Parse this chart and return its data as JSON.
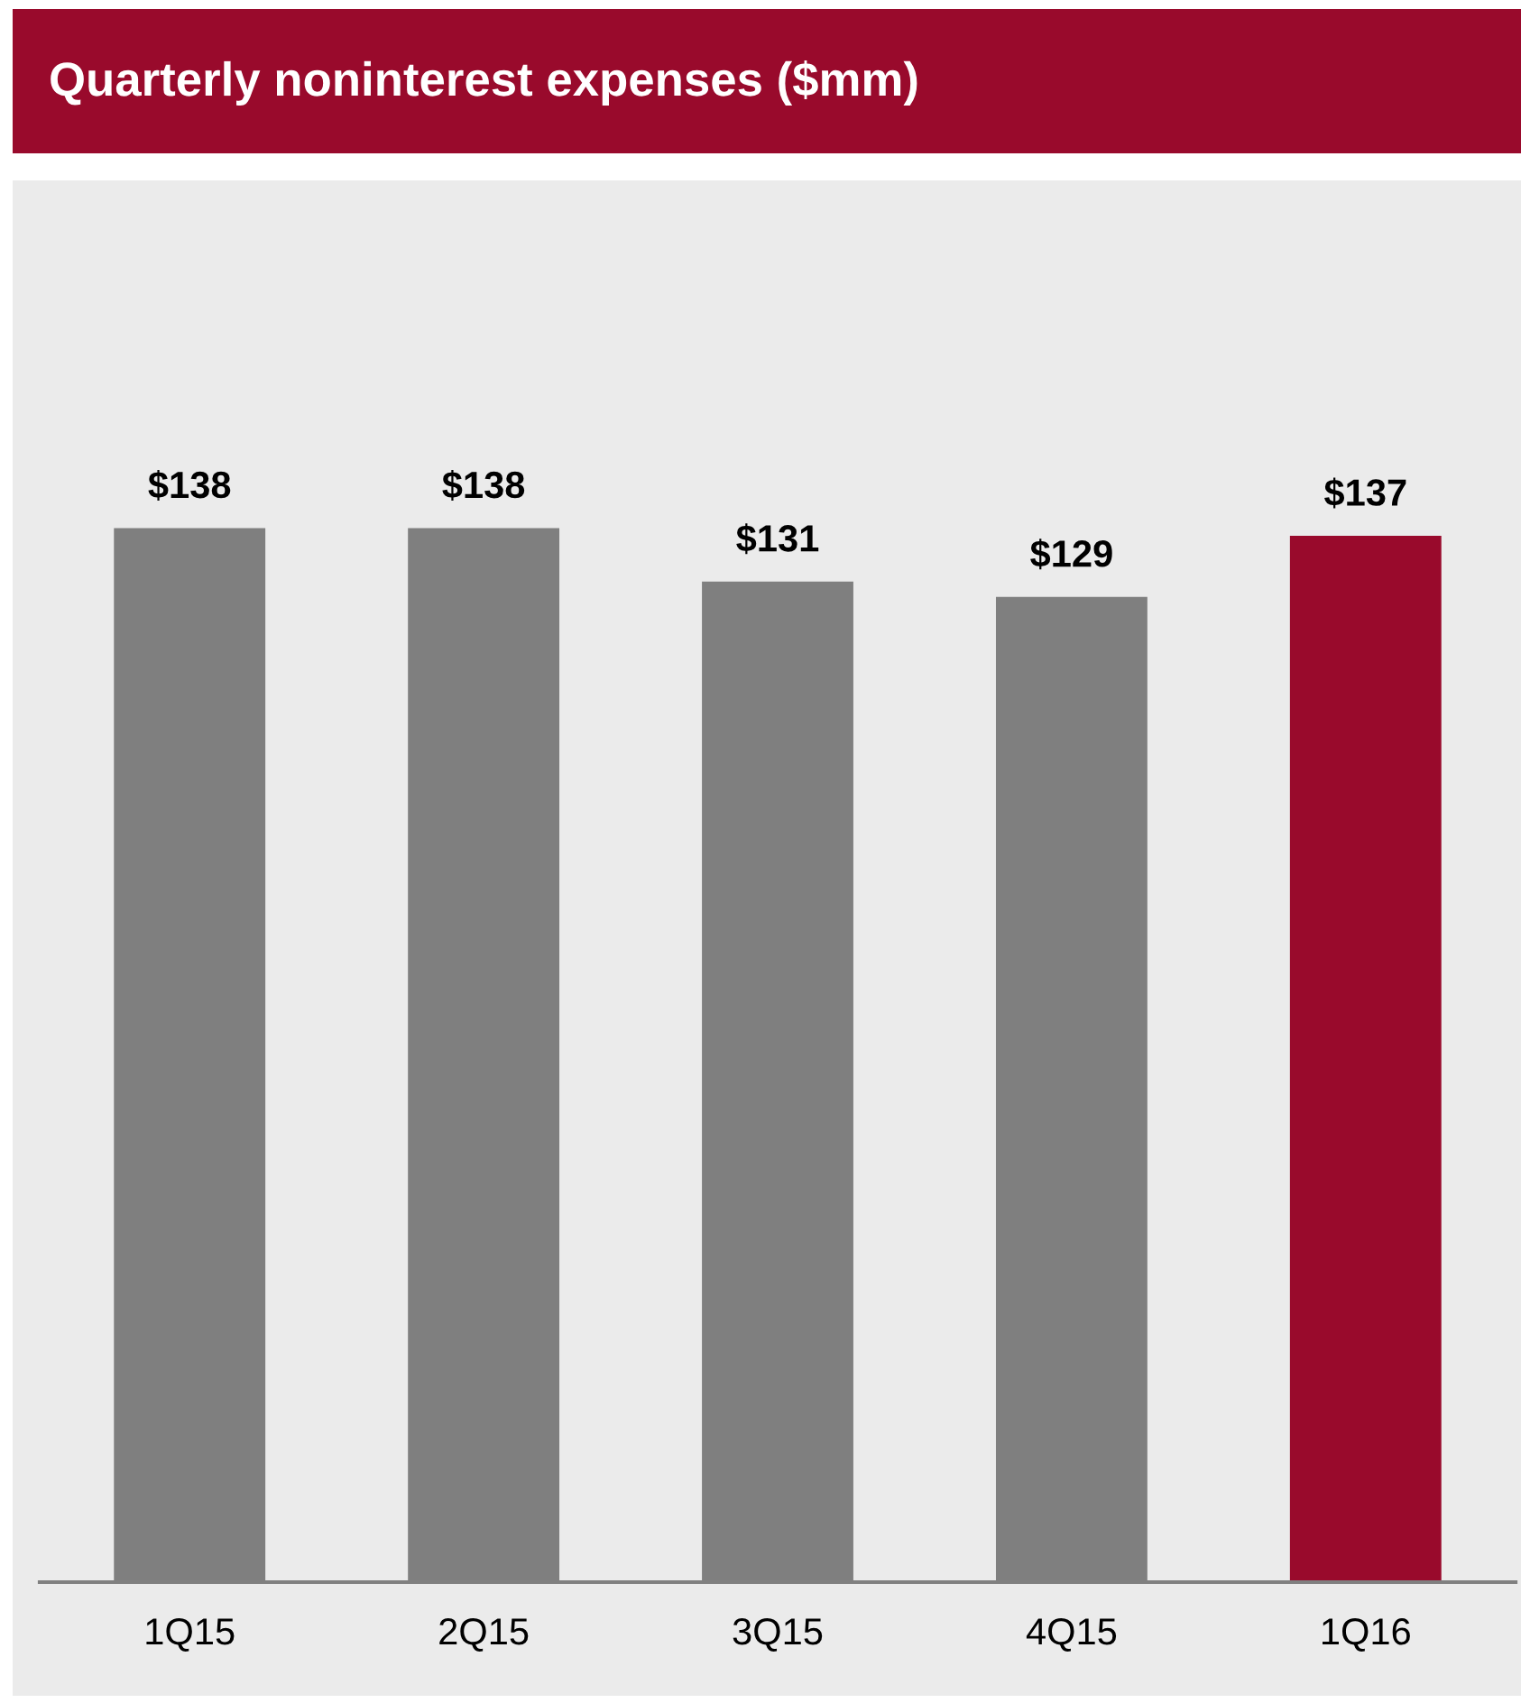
{
  "chart_data": {
    "type": "bar",
    "title": "Quarterly noninterest expenses ($mm)",
    "categories": [
      "1Q15",
      "2Q15",
      "3Q15",
      "4Q15",
      "1Q16"
    ],
    "values": [
      138,
      138,
      131,
      129,
      137
    ],
    "colors": [
      "#7f7f7f",
      "#7f7f7f",
      "#7f7f7f",
      "#7f7f7f",
      "#990a2c"
    ],
    "value_labels": [
      "$138",
      "$138",
      "$131",
      "$129",
      "$137"
    ],
    "tick_labels": "x",
    "grid": false,
    "legend": false
  }
}
